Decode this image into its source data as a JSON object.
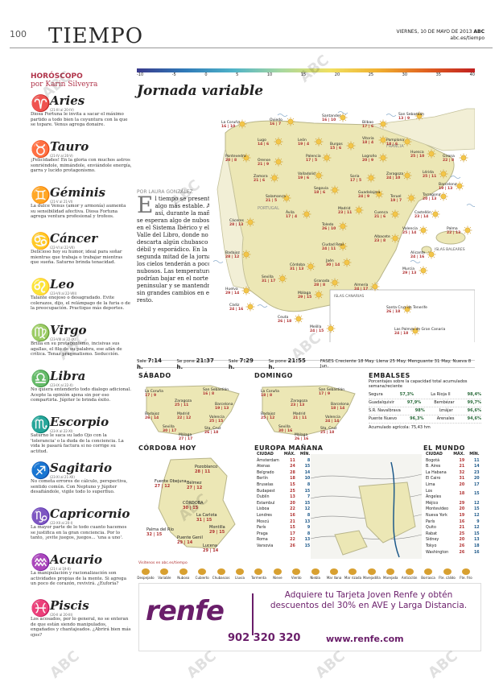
{
  "header": {
    "page_number": "100",
    "section": "TIEMPO",
    "date": "VIERNES, 10 DE MAYO DE 2013",
    "paper": "ABC",
    "site": "abc.es/tiempo"
  },
  "horoscope": {
    "heading": "HORÓSCOPO",
    "author": "por Karin Silveyra",
    "signs": [
      {
        "name": "Aries",
        "glyph": "♈",
        "dates": "(21-III al 20-IV)",
        "text": "Diosa Fortuna le invita a sacar el máximo partido a todo bien la coyuntura con la que se topare. Venus agrega donaire."
      },
      {
        "name": "Tauro",
        "glyph": "♉",
        "dates": "(21-IV al 20-V)",
        "text": "¡Felicidades! En la gloria con muchos astros sonriéndole, mimándole, enviándole energía, garra y lucido protagonismo."
      },
      {
        "name": "Géminis",
        "glyph": "♊",
        "dates": "(21-V al 21-VI)",
        "text": "La dulce Venus (amor y armonía) aumenta su sensibilidad afectiva. Diosa Fortuna agrega ventura profesional y trofeos."
      },
      {
        "name": "Cáncer",
        "glyph": "♋",
        "dates": "(22-VI al 22-VII)",
        "text": "Delicioso hoy su humor, ideal para soñar mientras que trabaja o trabajar mientras que sueña. Saturno brinda tenacidad."
      },
      {
        "name": "Leo",
        "glyph": "♌",
        "dates": "(23-VII al 22-VIII)",
        "text": "Talante enojoso o desagradado. Evite colerazos, dijo, el relámpago de la furia o de la preocupación. Practique más deportes."
      },
      {
        "name": "Virgo",
        "glyph": "♍",
        "dates": "(23-VIII al 22-IX)",
        "text": "Brilla en su protagonismo, incisivas sus agallas, el filo de su palabra, ese afán de crítica. Tenaz pragmatismo. Seducción."
      },
      {
        "name": "Libra",
        "glyph": "♎",
        "dates": "(23-IX al 22-X)",
        "text": "No quiera entenderlo todo dialogo adicional. Acepte la opinión ajena sin por eso compartirla. Júpiter le brinda éxito."
      },
      {
        "name": "Escorpio",
        "glyph": "♏",
        "dates": "(23-X al 22-XI)",
        "text": "Saturno le saca su lado Ojo con la 'tolerancia' o la duda de la conciencia. La vida le pasará factura si no corrige su actitud."
      },
      {
        "name": "Sagitario",
        "glyph": "♐",
        "dates": "(23-XI al 21-XII)",
        "text": "No cometa errores de cálculo, perspectiva, sentido común. Con Neptuno y Júpiter desafiándole, vigile todo lo superfluo."
      },
      {
        "name": "Capricornio",
        "glyph": "♑",
        "dates": "(22-XII al 20-I)",
        "text": "La mayor parte de lo todo cuanto hacemos se justifica en la gran conciencia. Por lo tanto, ¡evite juegos, juegos... 'una a uno'."
      },
      {
        "name": "Acuario",
        "glyph": "♒",
        "dates": "(21-I al 19-II)",
        "text": "La manipulación y racionalización son actividades propias de la mente. Si agrega un poco de corazón, revivirá. ¿Euforia?"
      },
      {
        "name": "Piscis",
        "glyph": "♓",
        "dates": "(20-II al 20-III)",
        "text": "Los acosados, por lo general, no se enteran de que están siendo manipulados, engañados y chantajeados. ¿Abrirá bien más ojos?"
      }
    ]
  },
  "scale": {
    "ticks": [
      "-10",
      "-5",
      "0",
      "5",
      "10",
      "15",
      "20",
      "25",
      "30",
      "35",
      "40"
    ]
  },
  "main": {
    "title": "Jornada variable",
    "byline": "POR LAURA GONZÁLEZ",
    "lead_cap": "E",
    "lead": "l tiempo se presenta algo más estable. Aun así, durante la mañana se esperan algo de nubosidad en el Sistema Ibérico y el Valle del Libro, donde no se descarta algún chubasco débil y esporádico. En la segunda mitad de la jornada los cielos tenderán a poco nubosos. Las temperaturas podrían bajar en el norte peninsular y se mantendrán sin grandes cambios en el resto.",
    "regions": {
      "portugal": "PORTUGAL",
      "francia": "FRANCIA",
      "baleares": "ISLAS BALEARES",
      "canarias": "ISLAS CANARIAS"
    }
  },
  "cities": [
    {
      "name": "La Coruña",
      "t": "16 | 10"
    },
    {
      "name": "Oviedo",
      "t": "16 | 7"
    },
    {
      "name": "Santander",
      "t": "16 | 10"
    },
    {
      "name": "Bilbao",
      "t": "17 | 6"
    },
    {
      "name": "San Sebastián",
      "t": "13 | 9"
    },
    {
      "name": "Lugo",
      "t": "14 | 6"
    },
    {
      "name": "León",
      "t": "19 | 4"
    },
    {
      "name": "Burgos",
      "t": "15 | 6"
    },
    {
      "name": "Vitoria",
      "t": "18 | 4"
    },
    {
      "name": "Pamplona",
      "t": "18 | 6"
    },
    {
      "name": "Pontevedra",
      "t": "20 | 8"
    },
    {
      "name": "Orense",
      "t": "21 | 9"
    },
    {
      "name": "Palencia",
      "t": "17 | 5"
    },
    {
      "name": "Logroño",
      "t": "20 | 9"
    },
    {
      "name": "Huesca",
      "t": "25 | 10"
    },
    {
      "name": "Girona",
      "t": "22 | 8"
    },
    {
      "name": "Lérida",
      "t": "25 | 11"
    },
    {
      "name": "Barcelona",
      "t": "19 | 13"
    },
    {
      "name": "Zaragoza",
      "t": "24 | 10"
    },
    {
      "name": "Tarragona",
      "t": "20 | 13"
    },
    {
      "name": "Zamora",
      "t": "21 | 6"
    },
    {
      "name": "Valladolid",
      "t": "19 | 6"
    },
    {
      "name": "Soria",
      "t": "17 | 5"
    },
    {
      "name": "Salamanca",
      "t": "21 | 5"
    },
    {
      "name": "Segovia",
      "t": "18 | 6"
    },
    {
      "name": "Guadalajara",
      "t": "24 | 9"
    },
    {
      "name": "Teruel",
      "t": "19 | 7"
    },
    {
      "name": "Castellón",
      "t": "23 | 14"
    },
    {
      "name": "Ávila",
      "t": "17 | 4"
    },
    {
      "name": "Madrid",
      "t": "23 | 11"
    },
    {
      "name": "Cuenca",
      "t": "21 | 6"
    },
    {
      "name": "Toledo",
      "t": "26 | 10"
    },
    {
      "name": "Valencia",
      "t": "25 | 14"
    },
    {
      "name": "Palma",
      "t": "22 | 13"
    },
    {
      "name": "Cáceres",
      "t": "28 | 13"
    },
    {
      "name": "Badajoz",
      "t": "28 | 12"
    },
    {
      "name": "Ciudad Real",
      "t": "24 | 11"
    },
    {
      "name": "Albacete",
      "t": "23 | 8"
    },
    {
      "name": "Alicante",
      "t": "24 | 16"
    },
    {
      "name": "Murcia",
      "t": "29 | 13"
    },
    {
      "name": "Córdoba",
      "t": "31 | 13"
    },
    {
      "name": "Jaén",
      "t": "30 | 14"
    },
    {
      "name": "Sevilla",
      "t": "31 | 17"
    },
    {
      "name": "Huelva",
      "t": "29 | 14"
    },
    {
      "name": "Granada",
      "t": "28 | 8"
    },
    {
      "name": "Almería",
      "t": "24 | 17"
    },
    {
      "name": "Málaga",
      "t": "29 | 15"
    },
    {
      "name": "Cádiz",
      "t": "24 | 16"
    },
    {
      "name": "Ceuta",
      "t": "26 | 18"
    },
    {
      "name": "Melilla",
      "t": "24 | 15"
    },
    {
      "name": "Santa Cruz de Tenerife",
      "t": "26 | 18"
    },
    {
      "name": "Las Palmas de Gran Canaria",
      "t": "24 | 18"
    }
  ],
  "sunbar": {
    "sale_sol": "Sale",
    "sale_sol_v": "7:14 h.",
    "pone_sol": "Se pone",
    "pone_sol_v": "21:37 h.",
    "sale_luna": "Sale",
    "sale_luna_v": "7:29 h.",
    "pone_luna": "Se pone",
    "pone_luna_v": "21:55 h.",
    "fases": "FASES  Creciente 18 May. Llena 25 May. Menguante 31 May. Nueva 8 Jun."
  },
  "forecast": {
    "sabado": {
      "title": "SÁBADO",
      "cities": [
        {
          "n": "La Coruña",
          "t": "17 | 9"
        },
        {
          "n": "San Sebastián",
          "t": "16 | 8"
        },
        {
          "n": "Zaragoza",
          "t": "25 | 11"
        },
        {
          "n": "Barcelona",
          "t": "19 | 13"
        },
        {
          "n": "Badajoz",
          "t": "26 | 14"
        },
        {
          "n": "Madrid",
          "t": "22 | 12"
        },
        {
          "n": "Valencia",
          "t": "25 | 15"
        },
        {
          "n": "Sevilla",
          "t": "30 | 17"
        },
        {
          "n": "Sta. Cruz",
          "t": "26 | 18"
        },
        {
          "n": "Málaga",
          "t": "27 | 17"
        }
      ]
    },
    "domingo": {
      "title": "DOMINGO",
      "cities": [
        {
          "n": "La Coruña",
          "t": "18 | 8"
        },
        {
          "n": "San Sebastián",
          "t": "17 | 9"
        },
        {
          "n": "Zaragoza",
          "t": "23 | 13"
        },
        {
          "n": "Barcelona",
          "t": "18 | 14"
        },
        {
          "n": "Badajoz",
          "t": "25 | 12"
        },
        {
          "n": "Madrid",
          "t": "21 | 11"
        },
        {
          "n": "Valencia",
          "t": "24 | 14"
        },
        {
          "n": "Sevilla",
          "t": "30 | 16"
        },
        {
          "n": "Sta. Cruz",
          "t": "25 | 18"
        },
        {
          "n": "Málaga",
          "t": "26 | 16"
        }
      ]
    }
  },
  "embalses": {
    "title": "EMBALSES",
    "subtitle": "Porcentajes sobre la capacidad total acumulados semana/reciente",
    "rows": [
      {
        "n": "Segura",
        "a": "57,3%",
        "b": "La Rioja II",
        "c": "98,4%"
      },
      {
        "n": "Guadalquivir",
        "a": "97,9%",
        "b": "Bembézar",
        "c": "99,7%"
      },
      {
        "n": "S.R. Navalbrava",
        "a": "98%",
        "b": "Iznájar",
        "c": "96,6%"
      },
      {
        "n": "Puente Nuevo",
        "a": "96,3%",
        "b": "Arenales",
        "c": "94,6%"
      }
    ],
    "total": "Acumulado agrícola: 75,43 hm"
  },
  "cordoba": {
    "title": "CÓRDOBA HOY",
    "cities": [
      {
        "n": "Pozoblanco",
        "t": "28 | 11"
      },
      {
        "n": "Fuente Obejuna",
        "t": "27 | 12"
      },
      {
        "n": "Bélmez",
        "t": "27 | 12"
      },
      {
        "n": "CÓRDOBA",
        "t": "30 | 15"
      },
      {
        "n": "La Carlota",
        "t": "31 | 15"
      },
      {
        "n": "Palma del Río",
        "t": "32 | 15"
      },
      {
        "n": "Montilla",
        "t": "29 | 15"
      },
      {
        "n": "Puente Genil",
        "t": "29 | 14"
      },
      {
        "n": "Lucena",
        "t": "29 | 14"
      }
    ],
    "note": "Visítenos en abc.es/tiempo"
  },
  "europa": {
    "title": "EUROPA MAÑANA",
    "cols": [
      "CIUDAD",
      "MÁX.",
      "MÍN."
    ],
    "rows": [
      [
        "Ámsterdam",
        "11",
        "8"
      ],
      [
        "Atenas",
        "24",
        "15"
      ],
      [
        "Belgrado",
        "28",
        "14"
      ],
      [
        "Berlín",
        "18",
        "10"
      ],
      [
        "Bruselas",
        "15",
        "8"
      ],
      [
        "Budapest",
        "25",
        "15"
      ],
      [
        "Dublín",
        "13",
        "7"
      ],
      [
        "Estambul",
        "20",
        "15"
      ],
      [
        "Lisboa",
        "22",
        "12"
      ],
      [
        "Londres",
        "16",
        "8"
      ],
      [
        "Moscú",
        "21",
        "13"
      ],
      [
        "París",
        "15",
        "9"
      ],
      [
        "Praga",
        "17",
        "8"
      ],
      [
        "Roma",
        "22",
        "13"
      ],
      [
        "Varsovia",
        "26",
        "15"
      ]
    ]
  },
  "mundo": {
    "title": "EL MUNDO",
    "cols": [
      "CIUDAD",
      "MÁX.",
      "MÍN."
    ],
    "rows": [
      [
        "Bogotá",
        "19",
        "11"
      ],
      [
        "B. Aires",
        "21",
        "14"
      ],
      [
        "La Habana",
        "32",
        "23"
      ],
      [
        "El Cairo",
        "31",
        "20"
      ],
      [
        "Lima",
        "20",
        "17"
      ],
      [
        "Los Ángeles",
        "18",
        "15"
      ],
      [
        "Méjico",
        "29",
        "12"
      ],
      [
        "Montevideo",
        "20",
        "15"
      ],
      [
        "Nueva York",
        "19",
        "12"
      ],
      [
        "París",
        "16",
        "9"
      ],
      [
        "Quito",
        "21",
        "12"
      ],
      [
        "Rabat",
        "25",
        "15"
      ],
      [
        "Sídney",
        "20",
        "13"
      ],
      [
        "Tokyo",
        "26",
        "18"
      ],
      [
        "Washington",
        "26",
        "16"
      ]
    ]
  },
  "legend": [
    "Despejado",
    "Variable",
    "Nuboso",
    "Cubierto",
    "Chubascos",
    "Lluvia",
    "Tormenta",
    "Nieve",
    "Viento",
    "Niebla",
    "Mar llana",
    "Mar rizada",
    "Marejadilla",
    "Marejada",
    "Anticiclón",
    "Borrasca",
    "Fte. cálido",
    "Fte. frío"
  ],
  "ad": {
    "logo": "renfe",
    "message": "Adquiere tu Tarjeta Joven Renfe y obtén descuentos del 30% en AVE y Larga Distancia.",
    "phone": "902 320 320",
    "url": "www.renfe.com"
  },
  "watermark": "ABC"
}
